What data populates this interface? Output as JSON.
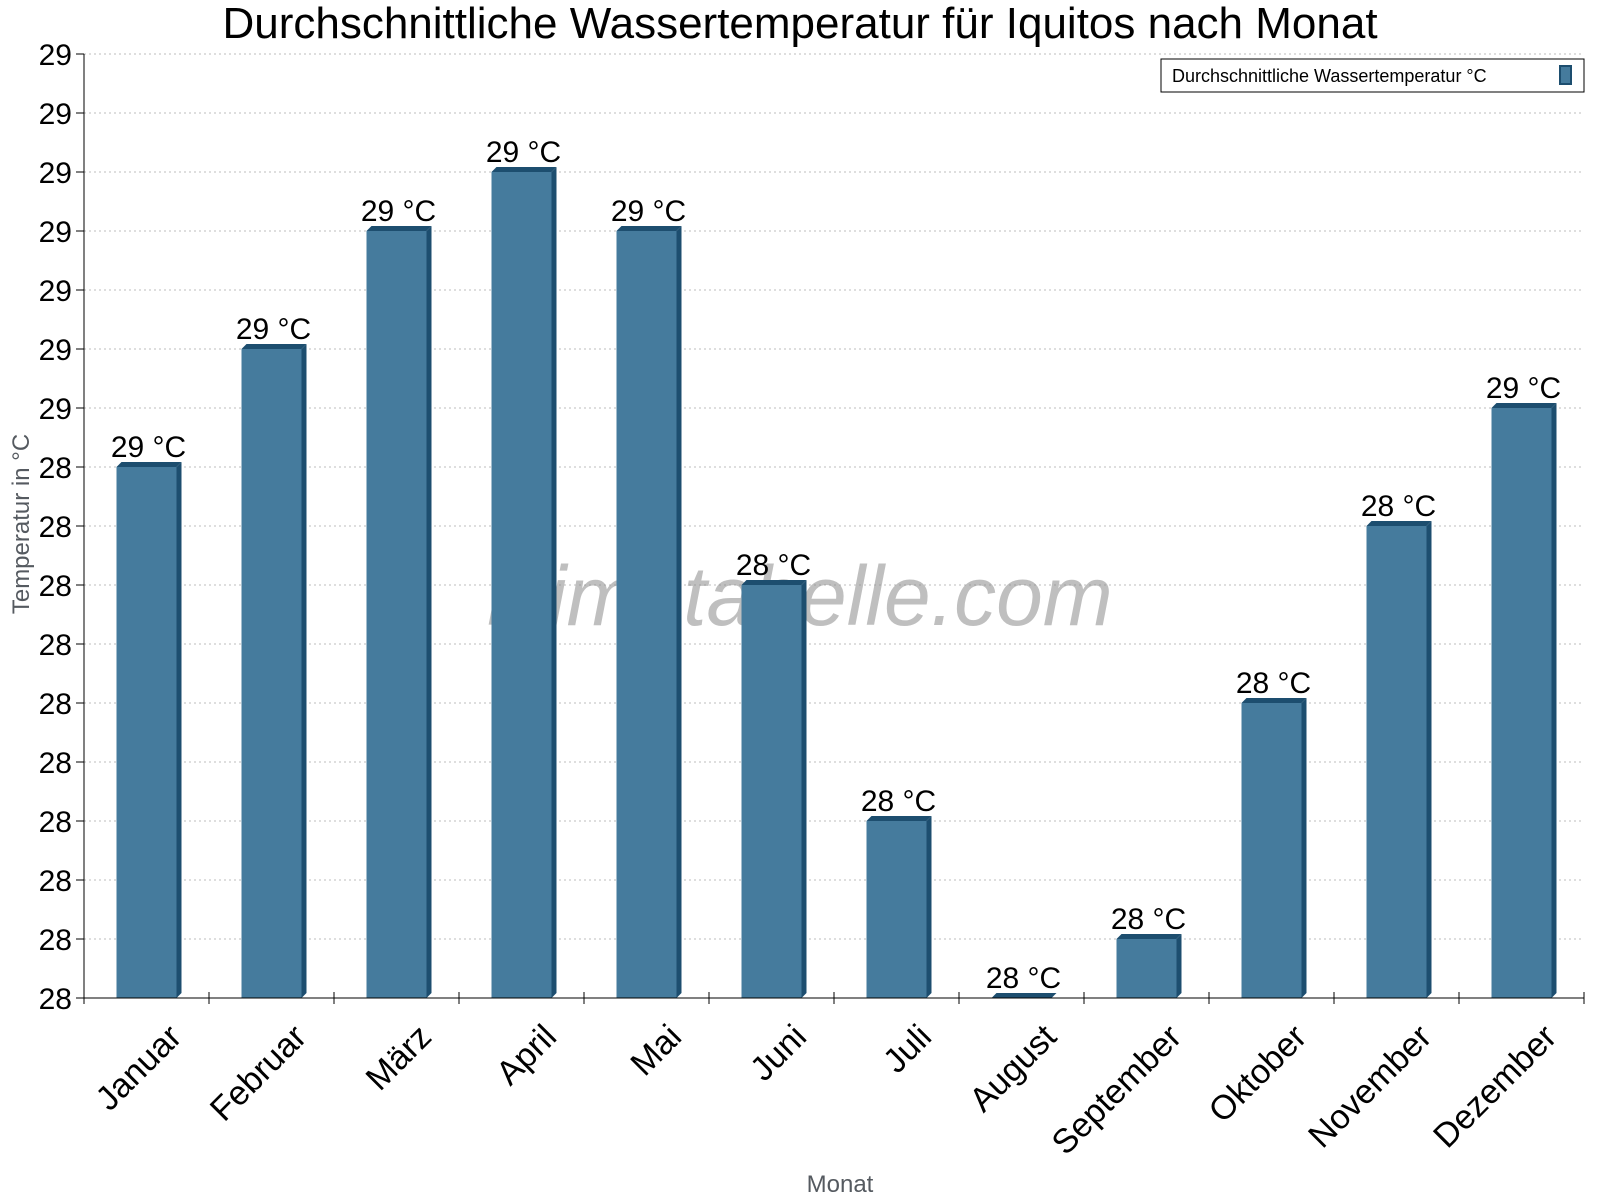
{
  "chart_data": {
    "type": "bar",
    "title": "Durchschnittliche Wassertemperatur für Iquitos nach Monat",
    "xlabel": "Monat",
    "ylabel": "Temperatur in °C",
    "categories": [
      "Januar",
      "Februar",
      "März",
      "April",
      "Mai",
      "Juni",
      "Juli",
      "August",
      "September",
      "Oktober",
      "November",
      "Dezember"
    ],
    "series": [
      {
        "name": "Durchschnittliche Wassertemperatur °C",
        "values": [
          28.5,
          28.7,
          28.9,
          29.0,
          28.9,
          28.3,
          27.9,
          27.6,
          27.7,
          28.1,
          28.4,
          28.6
        ],
        "labels": [
          "29 °C",
          "29 °C",
          "29 °C",
          "29 °C",
          "29 °C",
          "28 °C",
          "28 °C",
          "28 °C",
          "28 °C",
          "28 °C",
          "28 °C",
          "29 °C"
        ],
        "color": "#457b9d",
        "edge_color": "#1d4e6f"
      }
    ],
    "ylim": [
      27.6,
      29.2
    ],
    "yticks": [
      27.6,
      27.7,
      27.8,
      27.9,
      28.0,
      28.1,
      28.2,
      28.3,
      28.4,
      28.5,
      28.6,
      28.7,
      28.8,
      28.9,
      29.0,
      29.1,
      29.2
    ],
    "ytick_labels": [
      "28",
      "28",
      "28",
      "28",
      "28",
      "28",
      "28",
      "28",
      "28",
      "28",
      "29",
      "29",
      "29",
      "29",
      "29",
      "29",
      "29"
    ],
    "grid": true,
    "legend_position": "top-right",
    "watermark": "klimatabelle.com"
  }
}
